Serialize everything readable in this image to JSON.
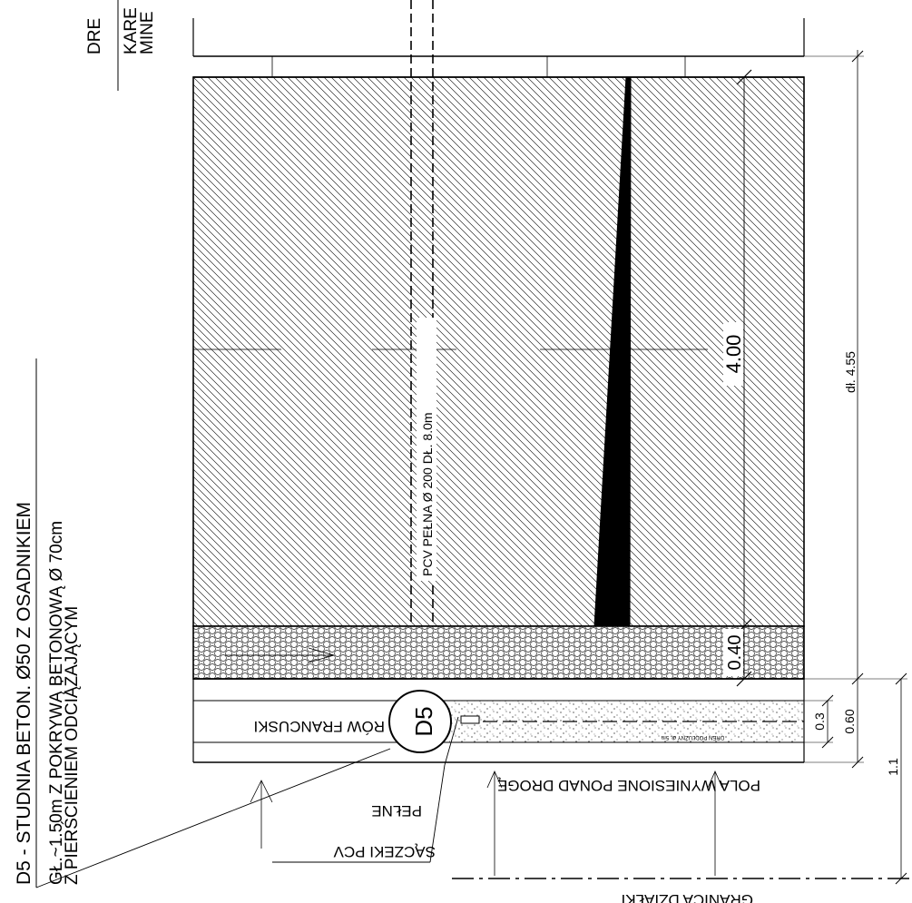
{
  "legend": {
    "title": "D5 - STUDNIA BETON. Ø50 Z OSADNIKIEM",
    "line1": "GŁ.~1.50m Z POKRYWĄ BETONOWĄ Ø 70cm",
    "line2": "Z PIERŚCIENIEM ODCIĄŻAJĄCYM"
  },
  "top_right_labels": {
    "line1": "DRE",
    "line2": "KARE",
    "line3": "MINE"
  },
  "pipe_label": "PCV PEŁNA Ø 200 DŁ. 8.0m",
  "well_label": "D5",
  "ditch_label": "RÓW FRANCUSKI",
  "drain_small_label": "DREN PODŁUŻNY dł. 5m",
  "pipes_label": {
    "line1": "SĄCZEKI PCV",
    "line2": "PEŁNE"
  },
  "fields_label": "POLA WYNIESIONE PONAD DROGĘ",
  "boundary_label": "GRANICA DZIAŁKI",
  "dimensions": {
    "main_length": "4.00",
    "gravel": "0.40",
    "ditch_width": "0.3",
    "strip_width": "0.60",
    "to_boundary": "1.1",
    "total_length": "dł. 4.55"
  }
}
